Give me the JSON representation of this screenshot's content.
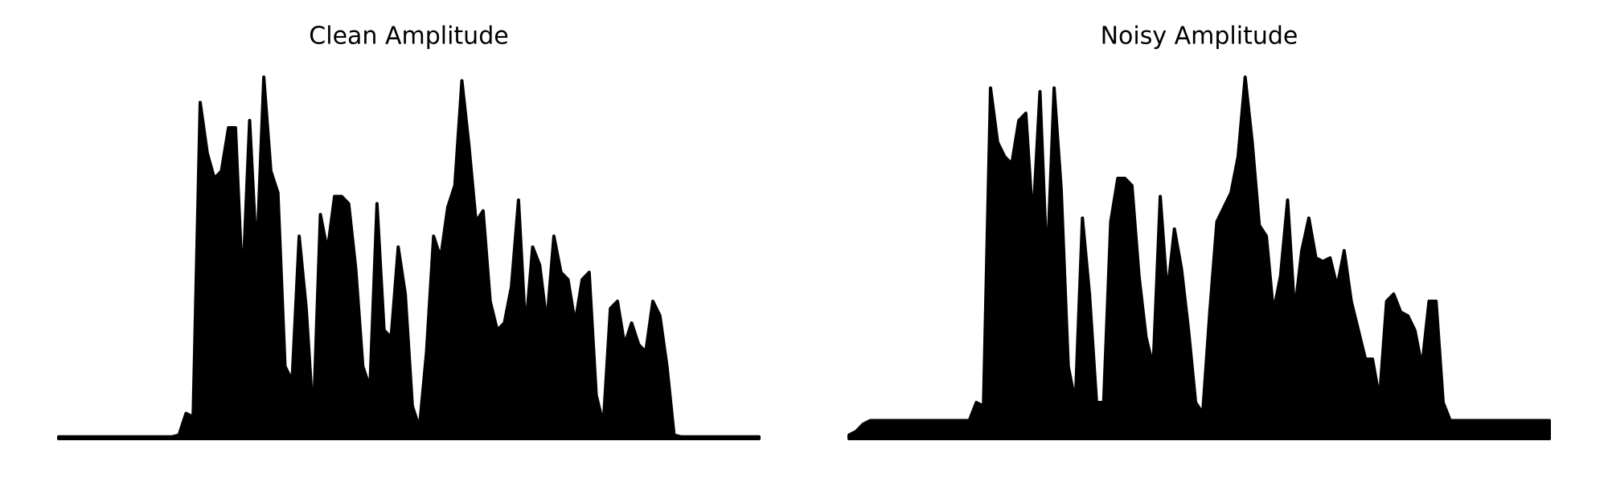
{
  "chart_data": [
    {
      "type": "area",
      "title": "Clean Amplitude",
      "color": "#000000",
      "ylim": [
        0,
        1
      ],
      "values": [
        0.005,
        0.005,
        0.005,
        0.005,
        0.005,
        0.005,
        0.005,
        0.005,
        0.005,
        0.005,
        0.005,
        0.005,
        0.005,
        0.005,
        0.005,
        0.005,
        0.005,
        0.01,
        0.07,
        0.06,
        0.93,
        0.79,
        0.72,
        0.74,
        0.86,
        0.86,
        0.42,
        0.88,
        0.5,
        1.0,
        0.74,
        0.68,
        0.2,
        0.16,
        0.56,
        0.36,
        0.05,
        0.62,
        0.52,
        0.67,
        0.67,
        0.65,
        0.47,
        0.2,
        0.14,
        0.65,
        0.3,
        0.28,
        0.53,
        0.4,
        0.09,
        0.03,
        0.24,
        0.56,
        0.5,
        0.64,
        0.7,
        0.99,
        0.81,
        0.6,
        0.63,
        0.38,
        0.3,
        0.32,
        0.42,
        0.66,
        0.3,
        0.53,
        0.48,
        0.32,
        0.56,
        0.46,
        0.44,
        0.32,
        0.44,
        0.46,
        0.12,
        0.04,
        0.36,
        0.38,
        0.26,
        0.32,
        0.26,
        0.24,
        0.38,
        0.34,
        0.2,
        0.01,
        0.005,
        0.005,
        0.005,
        0.005,
        0.005,
        0.005,
        0.005,
        0.005,
        0.005,
        0.005,
        0.005,
        0.005
      ]
    },
    {
      "type": "area",
      "title": "Noisy Amplitude",
      "color": "#000000",
      "ylim": [
        0,
        1
      ],
      "values": [
        0.01,
        0.02,
        0.04,
        0.05,
        0.05,
        0.05,
        0.05,
        0.05,
        0.05,
        0.05,
        0.05,
        0.05,
        0.05,
        0.05,
        0.05,
        0.05,
        0.05,
        0.05,
        0.1,
        0.09,
        0.97,
        0.82,
        0.78,
        0.76,
        0.88,
        0.9,
        0.6,
        0.96,
        0.47,
        0.97,
        0.69,
        0.2,
        0.1,
        0.61,
        0.4,
        0.1,
        0.1,
        0.6,
        0.72,
        0.72,
        0.7,
        0.45,
        0.28,
        0.2,
        0.67,
        0.4,
        0.58,
        0.47,
        0.3,
        0.1,
        0.07,
        0.35,
        0.6,
        0.64,
        0.68,
        0.78,
        1.0,
        0.82,
        0.59,
        0.56,
        0.35,
        0.45,
        0.66,
        0.35,
        0.52,
        0.61,
        0.5,
        0.49,
        0.5,
        0.42,
        0.52,
        0.38,
        0.3,
        0.22,
        0.22,
        0.11,
        0.38,
        0.4,
        0.35,
        0.34,
        0.3,
        0.2,
        0.38,
        0.38,
        0.1,
        0.05,
        0.05,
        0.05,
        0.05,
        0.05,
        0.05,
        0.05,
        0.05,
        0.05,
        0.05,
        0.05,
        0.05,
        0.05,
        0.05,
        0.05
      ]
    }
  ]
}
